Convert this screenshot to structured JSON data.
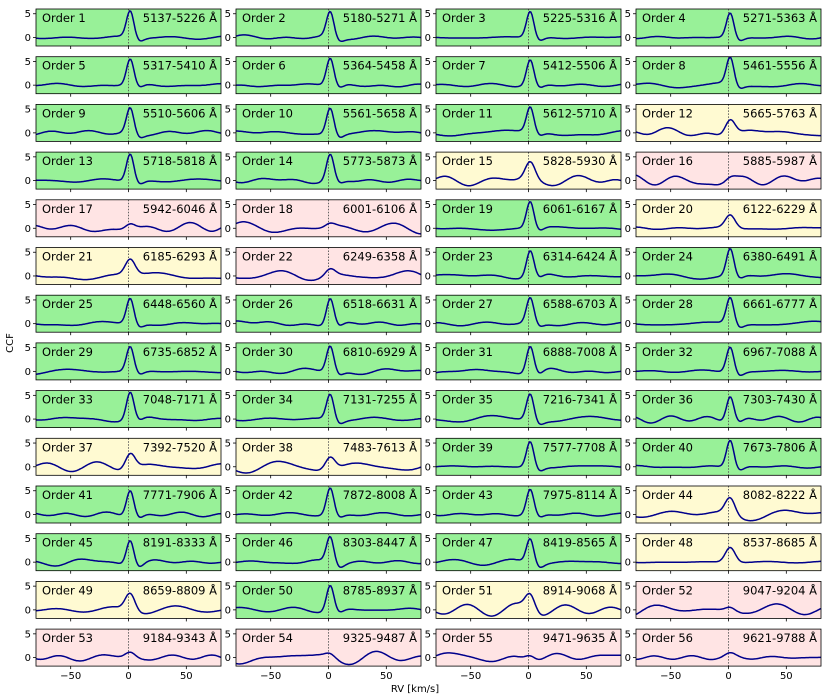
{
  "chart_data": {
    "type": "line",
    "xlabel": "RV [km/s]",
    "ylabel": "CCF",
    "xlim": [
      -80,
      80
    ],
    "ylim": [
      -1.8,
      6.0
    ],
    "xticks": [
      -50,
      0,
      50
    ],
    "yticks": [
      0,
      5
    ],
    "center_line_x": 0,
    "grid": false,
    "line_color": "#00008b",
    "center_line_color": "#555555",
    "quality_colors": {
      "good": "#98f198",
      "fair": "#fffad2",
      "poor": "#ffe4e4"
    },
    "orders": [
      {
        "label": "Order 1",
        "range": "5137-5226 Å",
        "quality": "good"
      },
      {
        "label": "Order 2",
        "range": "5180-5271 Å",
        "quality": "good"
      },
      {
        "label": "Order 3",
        "range": "5225-5316 Å",
        "quality": "good"
      },
      {
        "label": "Order 4",
        "range": "5271-5363 Å",
        "quality": "good"
      },
      {
        "label": "Order 5",
        "range": "5317-5410 Å",
        "quality": "good"
      },
      {
        "label": "Order 6",
        "range": "5364-5458 Å",
        "quality": "good"
      },
      {
        "label": "Order 7",
        "range": "5412-5506 Å",
        "quality": "good"
      },
      {
        "label": "Order 8",
        "range": "5461-5556 Å",
        "quality": "good"
      },
      {
        "label": "Order 9",
        "range": "5510-5606 Å",
        "quality": "good"
      },
      {
        "label": "Order 10",
        "range": "5561-5658 Å",
        "quality": "good"
      },
      {
        "label": "Order 11",
        "range": "5612-5710 Å",
        "quality": "good"
      },
      {
        "label": "Order 12",
        "range": "5665-5763 Å",
        "quality": "fair"
      },
      {
        "label": "Order 13",
        "range": "5718-5818 Å",
        "quality": "good"
      },
      {
        "label": "Order 14",
        "range": "5773-5873 Å",
        "quality": "good"
      },
      {
        "label": "Order 15",
        "range": "5828-5930 Å",
        "quality": "fair"
      },
      {
        "label": "Order 16",
        "range": "5885-5987 Å",
        "quality": "poor"
      },
      {
        "label": "Order 17",
        "range": "5942-6046 Å",
        "quality": "poor"
      },
      {
        "label": "Order 18",
        "range": "6001-6106 Å",
        "quality": "poor"
      },
      {
        "label": "Order 19",
        "range": "6061-6167 Å",
        "quality": "good"
      },
      {
        "label": "Order 20",
        "range": "6122-6229 Å",
        "quality": "fair"
      },
      {
        "label": "Order 21",
        "range": "6185-6293 Å",
        "quality": "fair"
      },
      {
        "label": "Order 22",
        "range": "6249-6358 Å",
        "quality": "poor"
      },
      {
        "label": "Order 23",
        "range": "6314-6424 Å",
        "quality": "good"
      },
      {
        "label": "Order 24",
        "range": "6380-6491 Å",
        "quality": "good"
      },
      {
        "label": "Order 25",
        "range": "6448-6560 Å",
        "quality": "good"
      },
      {
        "label": "Order 26",
        "range": "6518-6631 Å",
        "quality": "good"
      },
      {
        "label": "Order 27",
        "range": "6588-6703 Å",
        "quality": "good"
      },
      {
        "label": "Order 28",
        "range": "6661-6777 Å",
        "quality": "good"
      },
      {
        "label": "Order 29",
        "range": "6735-6852 Å",
        "quality": "good"
      },
      {
        "label": "Order 30",
        "range": "6810-6929 Å",
        "quality": "good"
      },
      {
        "label": "Order 31",
        "range": "6888-7008 Å",
        "quality": "good"
      },
      {
        "label": "Order 32",
        "range": "6967-7088 Å",
        "quality": "good"
      },
      {
        "label": "Order 33",
        "range": "7048-7171 Å",
        "quality": "good"
      },
      {
        "label": "Order 34",
        "range": "7131-7255 Å",
        "quality": "good"
      },
      {
        "label": "Order 35",
        "range": "7216-7341 Å",
        "quality": "good"
      },
      {
        "label": "Order 36",
        "range": "7303-7430 Å",
        "quality": "good"
      },
      {
        "label": "Order 37",
        "range": "7392-7520 Å",
        "quality": "fair"
      },
      {
        "label": "Order 38",
        "range": "7483-7613 Å",
        "quality": "fair"
      },
      {
        "label": "Order 39",
        "range": "7577-7708 Å",
        "quality": "good"
      },
      {
        "label": "Order 40",
        "range": "7673-7806 Å",
        "quality": "good"
      },
      {
        "label": "Order 41",
        "range": "7771-7906 Å",
        "quality": "good"
      },
      {
        "label": "Order 42",
        "range": "7872-8008 Å",
        "quality": "good"
      },
      {
        "label": "Order 43",
        "range": "7975-8114 Å",
        "quality": "good"
      },
      {
        "label": "Order 44",
        "range": "8082-8222 Å",
        "quality": "fair"
      },
      {
        "label": "Order 45",
        "range": "8191-8333 Å",
        "quality": "good"
      },
      {
        "label": "Order 46",
        "range": "8303-8447 Å",
        "quality": "good"
      },
      {
        "label": "Order 47",
        "range": "8419-8565 Å",
        "quality": "good"
      },
      {
        "label": "Order 48",
        "range": "8537-8685 Å",
        "quality": "fair"
      },
      {
        "label": "Order 49",
        "range": "8659-8809 Å",
        "quality": "fair"
      },
      {
        "label": "Order 50",
        "range": "8785-8937 Å",
        "quality": "good"
      },
      {
        "label": "Order 51",
        "range": "8914-9068 Å",
        "quality": "fair"
      },
      {
        "label": "Order 52",
        "range": "9047-9204 Å",
        "quality": "poor"
      },
      {
        "label": "Order 53",
        "range": "9184-9343 Å",
        "quality": "poor"
      },
      {
        "label": "Order 54",
        "range": "9325-9487 Å",
        "quality": "poor"
      },
      {
        "label": "Order 55",
        "range": "9471-9635 Å",
        "quality": "poor"
      },
      {
        "label": "Order 56",
        "range": "9621-9788 Å",
        "quality": "poor"
      }
    ]
  }
}
